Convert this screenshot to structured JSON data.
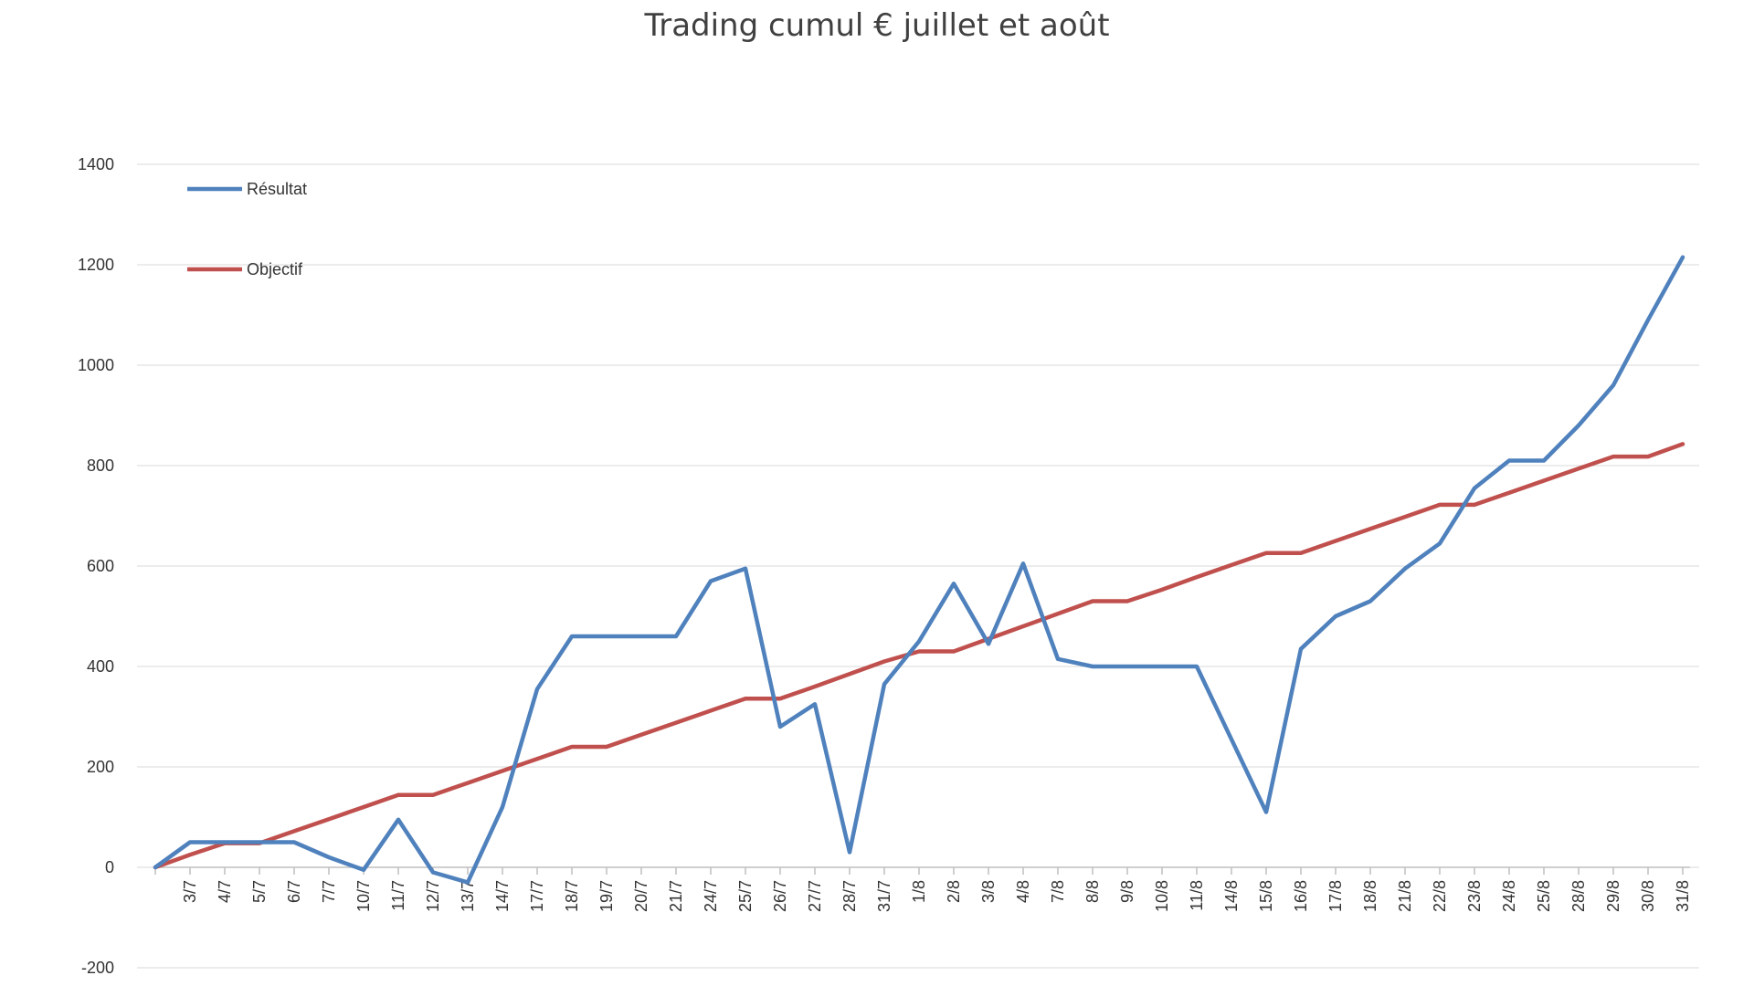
{
  "chart_data": {
    "type": "line",
    "title": "Trading cumul € juillet et août",
    "xlabel": "",
    "ylabel": "",
    "ylim": [
      -200,
      1400
    ],
    "yticks": [
      -200,
      0,
      200,
      400,
      600,
      800,
      1000,
      1200,
      1400
    ],
    "grid": true,
    "legend_position": "top-left",
    "categories": [
      "",
      "3/7",
      "4/7",
      "5/7",
      "6/7",
      "7/7",
      "10/7",
      "11/7",
      "12/7",
      "13/7",
      "14/7",
      "17/7",
      "18/7",
      "19/7",
      "20/7",
      "21/7",
      "24/7",
      "25/7",
      "26/7",
      "27/7",
      "28/7",
      "31/7",
      "1/8",
      "2/8",
      "3/8",
      "4/8",
      "7/8",
      "8/8",
      "9/8",
      "10/8",
      "11/8",
      "14/8",
      "15/8",
      "16/8",
      "17/8",
      "18/8",
      "21/8",
      "22/8",
      "23/8",
      "24/8",
      "25/8",
      "28/8",
      "29/8",
      "30/8",
      "31/8"
    ],
    "series": [
      {
        "name": "Résultat",
        "color": "#4f81bd",
        "values": [
          0,
          50,
          50,
          50,
          50,
          20,
          -5,
          95,
          -10,
          -30,
          120,
          355,
          460,
          460,
          460,
          460,
          570,
          595,
          280,
          325,
          30,
          365,
          450,
          565,
          445,
          605,
          415,
          400,
          400,
          400,
          400,
          255,
          110,
          435,
          500,
          530,
          595,
          645,
          755,
          810,
          810,
          880,
          960,
          1090,
          1215
        ]
      },
      {
        "name": "Objectif",
        "color": "#c0504d",
        "values": [
          0,
          25,
          48,
          48,
          72,
          96,
          120,
          144,
          144,
          168,
          192,
          216,
          240,
          240,
          264,
          288,
          312,
          336,
          336,
          360,
          385,
          410,
          430,
          430,
          455,
          480,
          505,
          530,
          530,
          553,
          578,
          602,
          626,
          626,
          650,
          674,
          698,
          722,
          722,
          746,
          770,
          794,
          818,
          818,
          843
        ]
      }
    ]
  }
}
